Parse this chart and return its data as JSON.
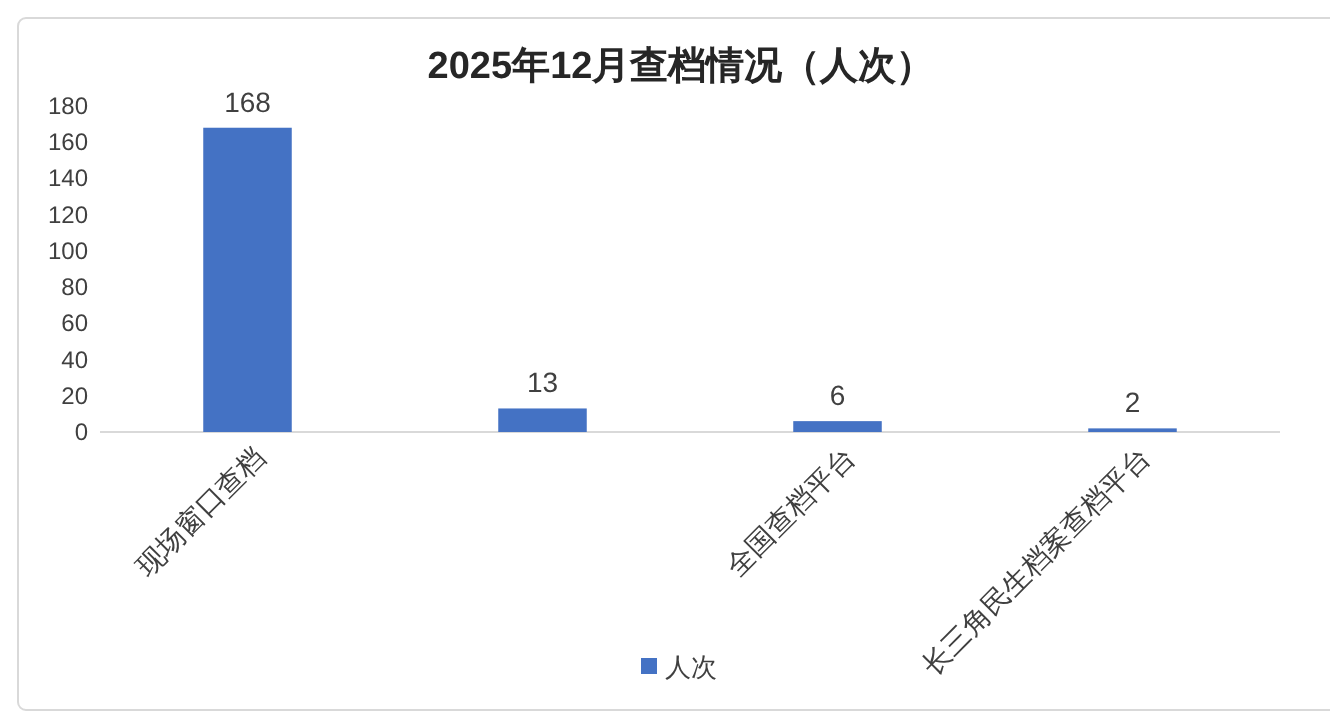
{
  "chart_data": {
    "type": "bar",
    "title": "2025年12月查档情况（人次）",
    "categories": [
      "现场窗口查档",
      null,
      "全国查档平台",
      "长三角民生档案查档平台"
    ],
    "series": [
      {
        "name": "人次",
        "color": "#4472c4",
        "values": [
          168,
          13,
          6,
          2
        ]
      }
    ],
    "ylim": [
      0,
      180
    ],
    "yticks": [
      0,
      20,
      40,
      60,
      80,
      100,
      120,
      140,
      160,
      180
    ],
    "data_labels": true,
    "grid": false,
    "legend": "bottom"
  }
}
